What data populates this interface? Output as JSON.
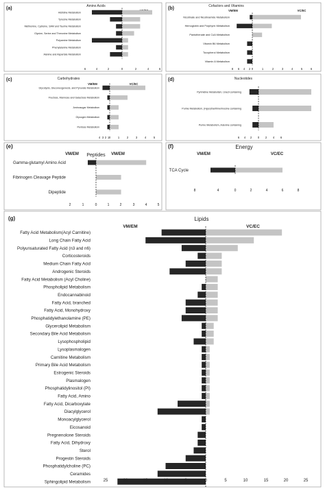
{
  "colors": {
    "vm": "#262626",
    "vc": "#c4c4c4",
    "frame": "#9a9a9a",
    "text": "#222222"
  },
  "panels": [
    {
      "id": "a",
      "panel_label": "(a)",
      "title": "Amino Acids",
      "left_header": "",
      "right_header": "VC/EC",
      "ticks_left": [
        "6",
        "4",
        "2"
      ],
      "ticks_right": [
        "2",
        "4",
        "6"
      ],
      "categories": [
        "Histidine Metabolism",
        "Tyrosine Metabolism",
        "Methionine, Cysteine, SAM and Taurine Metabolism",
        "Glycine, Serine and Threonine Metabolism",
        "Polyamine Metabolism",
        "Phenylalanine Metabolism",
        "Alanine and Aspartate Metabolism"
      ]
    },
    {
      "id": "b",
      "panel_label": "(b)",
      "title": "Cofactors and Vitamins",
      "left_header": "VM/EM",
      "right_header": "VC/EC",
      "ticks_left": [
        "8",
        "6",
        "4",
        "2"
      ],
      "ticks_right": [
        "1",
        "2",
        "3",
        "4",
        "5",
        "6"
      ],
      "categories": [
        "Nicotinate and Nicotinamide Metabolism",
        "Hemoglobin and Porphyrin Metabolism",
        "Pantothenate and CoA Metabolism",
        "Vitamin B6 Metabolism",
        "Tocopherol Metabolism",
        "Vitamin A Metabolism"
      ]
    },
    {
      "id": "c",
      "panel_label": "(c)",
      "title": "Carbohydrates",
      "left_header": "VM/EM",
      "right_header": "VC/EC",
      "ticks_left": [
        "4",
        "3",
        "2",
        "1"
      ],
      "ticks_right": [
        "1",
        "2",
        "3",
        "4",
        "5"
      ],
      "categories": [
        "Glycolysis, Gluconeogenesis, and Pyruvate Metabolism",
        "Fructose, Mannose and Galactose Metabolism",
        "Aminosugar Metabolism",
        "Glycogen Metabolism",
        "Pentose Metabolism"
      ]
    },
    {
      "id": "d",
      "panel_label": "(d)",
      "title": "Nucleotides",
      "left_header": "",
      "right_header": "",
      "ticks_left": [
        "6",
        "4",
        "2"
      ],
      "ticks_right": [
        "2",
        "4",
        "6"
      ],
      "categories": [
        "Pyrimidine Metabolism, Uracil containing",
        "Purine Metabolism, (Hypo)Xanthine/Inosine containing",
        "Purine Metabolism, Adenine containing"
      ]
    },
    {
      "id": "e",
      "panel_label": "(e)",
      "title": "Peptides",
      "left_header": "VM/EM",
      "right_header": "VM/EM",
      "ticks_left": [
        "2",
        "1"
      ],
      "ticks_right": [
        "1",
        "2",
        "3",
        "4",
        "5"
      ],
      "categories": [
        "Gamma-glutamyl Amino Acid",
        "Fibrinogen Cleavage Peptide",
        "Dipeptide"
      ]
    },
    {
      "id": "f",
      "panel_label": "(f)",
      "title": "Energy",
      "left_header": "VM/EM",
      "right_header": "VC/EC",
      "ticks_left": [
        "8",
        "4"
      ],
      "ticks_right": [
        "2",
        "4",
        "6",
        "8"
      ],
      "categories": [
        "TCA Cycle"
      ]
    },
    {
      "id": "g",
      "panel_label": "(g)",
      "title": "Lipids",
      "left_header": "VM/EM",
      "right_header": "VC/EC",
      "ticks_left": [
        "25",
        "20",
        "15",
        "10",
        "5"
      ],
      "ticks_right": [
        "5",
        "10",
        "15",
        "20",
        "25"
      ],
      "categories": [
        "Fatty Acid Metabolism(Acyl Carnitine)",
        "Long Chain Fatty Acid",
        "Polyunsaturated Fatty Acid (n3 and n6)",
        "Corticosteroids",
        "Medium Chain Fatty Acid",
        "Androgenic Steroids",
        "Fatty Acid Metabolism (Acyl Choline)",
        "Phospholipid Metabolism",
        "Endocannabinoid",
        "Fatty Acid, branched",
        "Fatty Acid, Monohydroxy",
        "Phosphatidylethanolamine (PE)",
        "Glycerolipid Metabolism",
        "Secondary Bile Acid Metabolism",
        "Lysophospholipid",
        "Lysoplasmalogen",
        "Carnitine Metabolism",
        "Primary Bile Acid Metabolism",
        "Estrogenic Steroids",
        "Plasmalogen",
        "Phosphatidylinositol (PI)",
        "Fatty Acid, Amino",
        "Fatty Acid, Dicarboxylate",
        "Diacylglycerol",
        "Monoacylglycerol",
        "Eicosanoid",
        "Pregnenolone Steroids",
        "Fatty Acid, Dihydroxy",
        "Sterol",
        "Progestin Steroids",
        "Phosphatidylcholine (PC)",
        "Ceramides",
        "Sphingolipid Metabolism"
      ]
    }
  ],
  "chart_data": [
    {
      "id": "a",
      "type": "bar",
      "title": "Amino Acids",
      "orientation": "horizontal-diverging",
      "categories": [
        "Histidine Metabolism",
        "Tyrosine Metabolism",
        "Methionine, Cysteine, SAM and Taurine Metabolism",
        "Glycine, Serine and Threonine Metabolism",
        "Polyamine Metabolism",
        "Phenylalanine Metabolism",
        "Alanine and Aspartate Metabolism"
      ],
      "series": [
        {
          "values": [
            5,
            2,
            1,
            1,
            5,
            1,
            2
          ]
        },
        {
          "name": "VC/EC",
          "values": [
            5,
            3,
            3,
            2,
            1,
            1,
            1
          ]
        }
      ],
      "xlim_left": [
        0,
        6
      ],
      "xlim_right": [
        0,
        6
      ]
    },
    {
      "id": "b",
      "type": "bar",
      "title": "Cofactors and Vitamins",
      "orientation": "horizontal-diverging",
      "categories": [
        "Nicotinate and Nicotinamide Metabolism",
        "Hemoglobin and Porphyrin Metabolism",
        "Pantothenate and CoA Metabolism",
        "Vitamin B6 Metabolism",
        "Tocopherol Metabolism",
        "Vitamin A Metabolism"
      ],
      "series": [
        {
          "name": "VM/EM",
          "values": [
            1,
            6,
            0,
            2,
            2,
            2
          ]
        },
        {
          "name": "VC/EC",
          "values": [
            5,
            2,
            1,
            0,
            0,
            0
          ]
        }
      ],
      "xlim_left": [
        0,
        8
      ],
      "xlim_right": [
        0,
        6
      ]
    },
    {
      "id": "c",
      "type": "bar",
      "title": "Carbohydrates",
      "orientation": "horizontal-diverging",
      "categories": [
        "Glycolysis, Gluconeogenesis, and Pyruvate Metabolism",
        "Fructose, Mannose and Galactose Metabolism",
        "Aminosugar Metabolism",
        "Glycogen Metabolism",
        "Pentose Metabolism"
      ],
      "series": [
        {
          "name": "VM/EM",
          "values": [
            3,
            1,
            1,
            1,
            1
          ]
        },
        {
          "name": "VC/EC",
          "values": [
            4,
            2,
            1,
            1,
            1
          ]
        }
      ],
      "xlim_left": [
        0,
        4
      ],
      "xlim_right": [
        0,
        5
      ]
    },
    {
      "id": "d",
      "type": "bar",
      "title": "Nucleotides",
      "orientation": "horizontal-diverging",
      "categories": [
        "Pyrimidine Metabolism, Uracil containing",
        "Purine Metabolism, (Hypo)Xanthine/Inosine containing",
        "Purine Metabolism, Adenine containing"
      ],
      "series": [
        {
          "values": [
            3,
            2,
            2
          ]
        },
        {
          "values": [
            7,
            7,
            2
          ]
        }
      ],
      "xlim_left": [
        0,
        6
      ],
      "xlim_right": [
        0,
        6
      ]
    },
    {
      "id": "e",
      "type": "bar",
      "title": "Peptides",
      "orientation": "horizontal-diverging",
      "categories": [
        "Gamma-glutamyl Amino Acid",
        "Fibrinogen Cleavage Peptide",
        "Dipeptide"
      ],
      "series": [
        {
          "name": "VM/EM",
          "values": [
            0.5,
            0,
            0
          ]
        },
        {
          "values": [
            4,
            2,
            2
          ]
        }
      ],
      "xlim_left": [
        0,
        2
      ],
      "xlim_right": [
        0,
        5
      ]
    },
    {
      "id": "f",
      "type": "bar",
      "title": "Energy",
      "orientation": "horizontal-diverging",
      "categories": [
        "TCA Cycle"
      ],
      "series": [
        {
          "name": "VM/EM",
          "values": [
            6
          ]
        },
        {
          "name": "VC/EC",
          "values": [
            6
          ]
        }
      ],
      "xlim_left": [
        0,
        8
      ],
      "xlim_right": [
        0,
        8
      ]
    },
    {
      "id": "g",
      "type": "bar",
      "title": "Lipids",
      "orientation": "horizontal-diverging",
      "categories": [
        "Fatty Acid Metabolism(Acyl Carnitine)",
        "Long Chain Fatty Acid",
        "Polyunsaturated Fatty Acid (n3 and n6)",
        "Corticosteroids",
        "Medium Chain Fatty Acid",
        "Androgenic Steroids",
        "Fatty Acid Metabolism (Acyl Choline)",
        "Phospholipid Metabolism",
        "Endocannabinoid",
        "Fatty Acid, branched",
        "Fatty Acid, Monohydroxy",
        "Phosphatidylethanolamine (PE)",
        "Glycerolipid Metabolism",
        "Secondary Bile Acid Metabolism",
        "Lysophospholipid",
        "Lysoplasmalogen",
        "Carnitine Metabolism",
        "Primary Bile Acid Metabolism",
        "Estrogenic Steroids",
        "Plasmalogen",
        "Phosphatidylinositol (PI)",
        "Fatty Acid, Amino",
        "Fatty Acid, Dicarboxylate",
        "Diacylglycerol",
        "Monoacylglycerol",
        "Eicosanoid",
        "Pregnenolone Steroids",
        "Fatty Acid, Dihydroxy",
        "Sterol",
        "Progestin Steroids",
        "Phosphatidylcholine (PC)",
        "Ceramides",
        "Sphingolipid Metabolism"
      ],
      "series": [
        {
          "name": "VM/EM",
          "values": [
            11,
            15,
            6,
            2,
            5,
            9,
            0,
            1,
            2,
            5,
            5,
            6,
            1,
            1,
            3,
            1,
            1,
            1,
            1,
            1,
            1,
            1,
            7,
            12,
            1,
            1,
            2,
            2,
            3,
            5,
            10,
            12,
            22
          ]
        },
        {
          "name": "VC/EC",
          "values": [
            19,
            12,
            8,
            4,
            4,
            4,
            3,
            3,
            3,
            3,
            3,
            3,
            2,
            2,
            2,
            1,
            1,
            1,
            1,
            1,
            1,
            1,
            1,
            1,
            0,
            0,
            0,
            0,
            0,
            0,
            0,
            0,
            0
          ]
        }
      ],
      "xlim_left": [
        0,
        25
      ],
      "xlim_right": [
        0,
        25
      ]
    }
  ]
}
